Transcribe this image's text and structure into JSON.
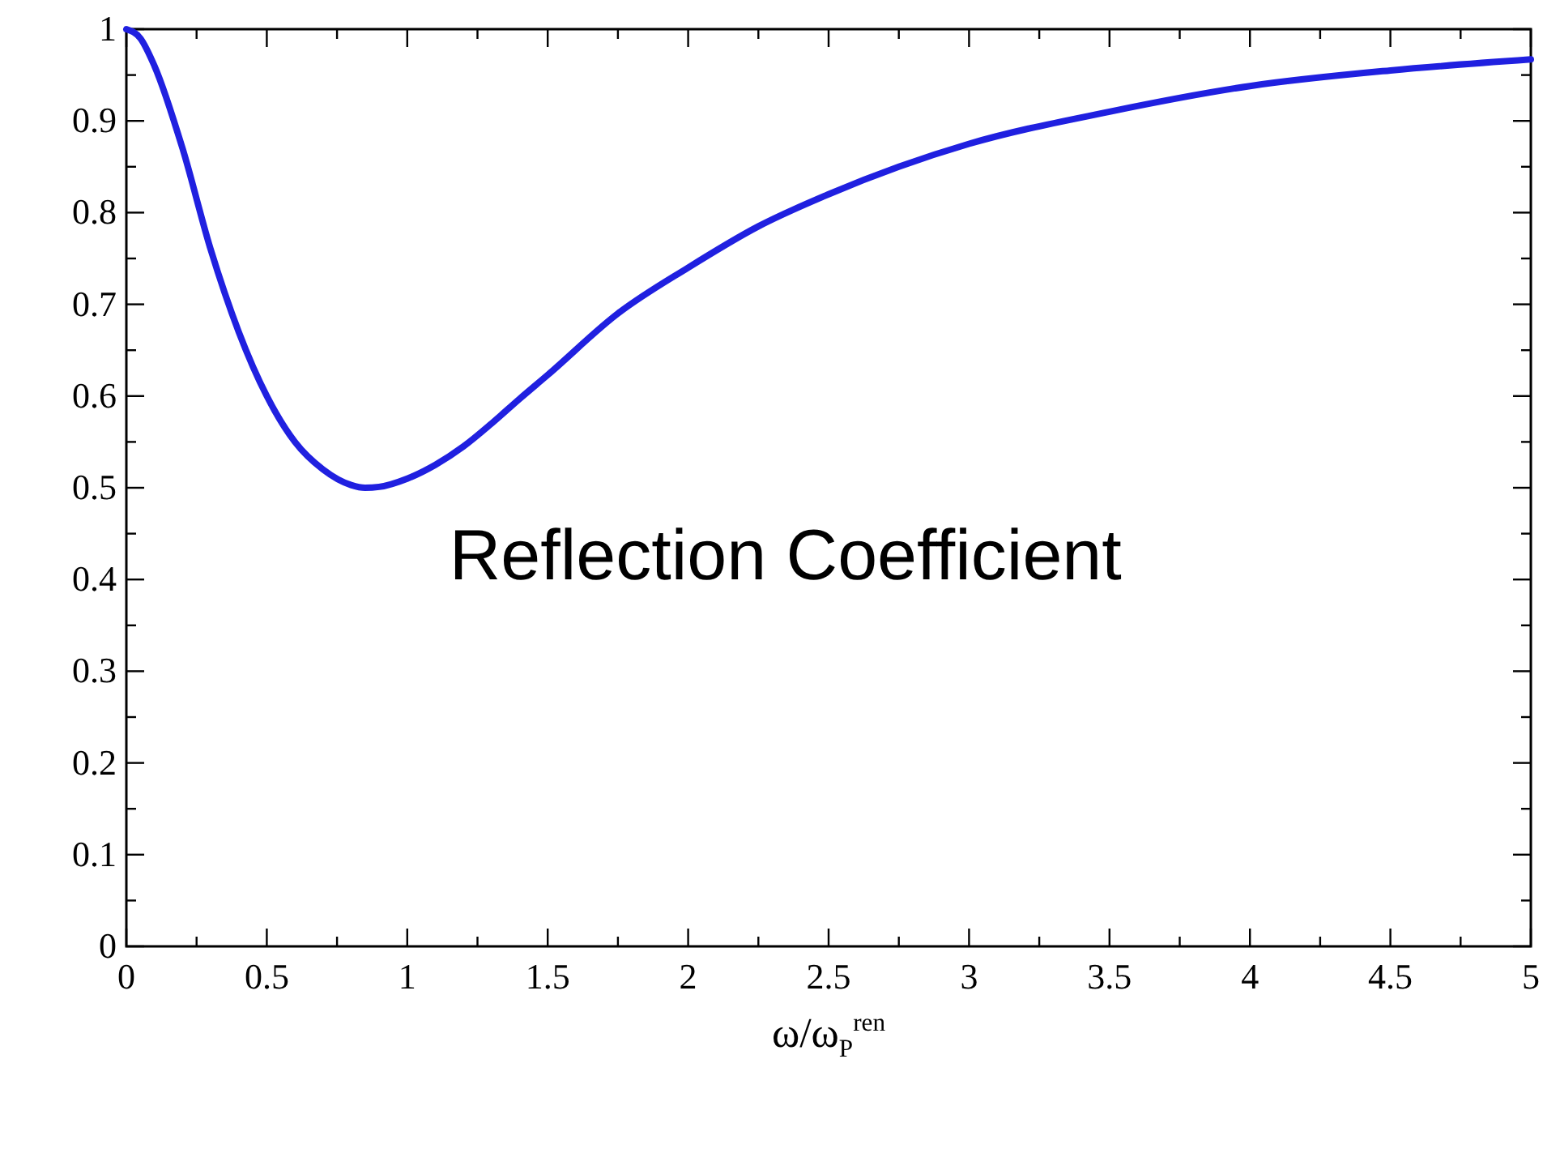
{
  "chart_data": {
    "type": "line",
    "xlabel": "ω/ω$_{P}$$^{ren}$",
    "annotations": [
      "Reflection Coefficient"
    ],
    "x": [
      0,
      0.05,
      0.1,
      0.2,
      0.3,
      0.4,
      0.5,
      0.6,
      0.7,
      0.8,
      0.85,
      0.9,
      1.0,
      1.1,
      1.2,
      1.3,
      1.4,
      1.5,
      1.75,
      2,
      2.25,
      2.5,
      2.75,
      3,
      3.5,
      4,
      4.5,
      5
    ],
    "series": [
      {
        "color": "#2020e0",
        "values": [
          1,
          0.99,
          0.96,
          0.87,
          0.76,
          0.67,
          0.6,
          0.55,
          0.52,
          0.503,
          0.5,
          0.501,
          0.51,
          0.525,
          0.545,
          0.57,
          0.597,
          0.623,
          0.69,
          0.74,
          0.785,
          0.82,
          0.85,
          0.875,
          0.91,
          0.938,
          0.955,
          0.967
        ]
      }
    ],
    "xlim": [
      0,
      5
    ],
    "ylim": [
      0,
      1
    ],
    "xticks": [
      0,
      {
        "value": 0.25,
        "label": null
      },
      0.5,
      {
        "value": 0.75,
        "label": null
      },
      1,
      {
        "value": 1.25,
        "label": null
      },
      1.5,
      {
        "value": 1.75,
        "label": null
      },
      2,
      {
        "value": 2.25,
        "label": null
      },
      2.5,
      {
        "value": 2.75,
        "label": null
      },
      3,
      {
        "value": 3.25,
        "label": null
      },
      3.5,
      {
        "value": 3.75,
        "label": null
      },
      4,
      {
        "value": 4.25,
        "label": null
      },
      4.5,
      {
        "value": 4.75,
        "label": null
      },
      5
    ],
    "yticks": [
      0,
      {
        "value": 0.05,
        "label": null
      },
      0.1,
      {
        "value": 0.15,
        "label": null
      },
      0.2,
      {
        "value": 0.25,
        "label": null
      },
      0.3,
      {
        "value": 0.35,
        "label": null
      },
      0.4,
      {
        "value": 0.45,
        "label": null
      },
      0.5,
      {
        "value": 0.55,
        "label": null
      },
      0.6,
      {
        "value": 0.65,
        "label": null
      },
      0.7,
      {
        "value": 0.75,
        "label": null
      },
      0.8,
      {
        "value": 0.85,
        "label": null
      },
      0.9,
      {
        "value": 0.95,
        "label": null
      },
      1
    ],
    "grid": false,
    "marker": "none",
    "line_style": "solid"
  }
}
